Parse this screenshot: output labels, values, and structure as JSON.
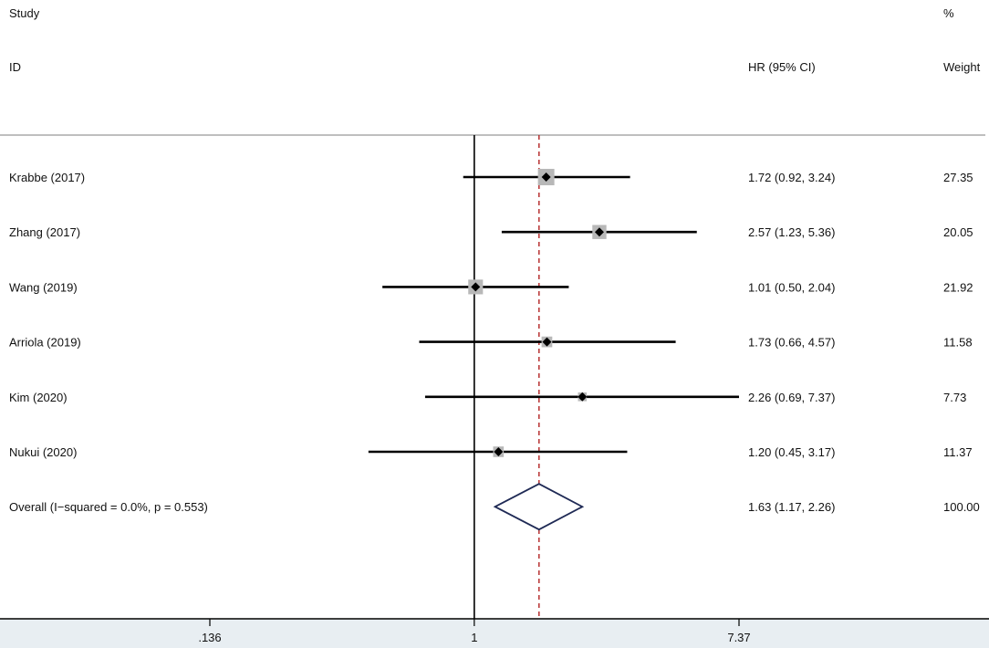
{
  "chart_data": {
    "type": "forest",
    "header": {
      "study_line1": "Study",
      "study_line2": "ID",
      "effect_label": "HR (95% CI)",
      "weight_line1": "%",
      "weight_line2": "Weight"
    },
    "x_scale": "log",
    "xlim": [
      0.136,
      7.37
    ],
    "x_ticks": [
      {
        "value": 0.136,
        "label": ".136"
      },
      {
        "value": 1,
        "label": "1"
      },
      {
        "value": 7.37,
        "label": "7.37"
      }
    ],
    "null_line": 1,
    "pooled_line": 1.63,
    "studies": [
      {
        "name": "Krabbe (2017)",
        "hr": 1.72,
        "lower": 0.92,
        "upper": 3.24,
        "ci_text": "1.72 (0.92, 3.24)",
        "weight": 27.35,
        "weight_text": "27.35"
      },
      {
        "name": "Zhang (2017)",
        "hr": 2.57,
        "lower": 1.23,
        "upper": 5.36,
        "ci_text": "2.57 (1.23, 5.36)",
        "weight": 20.05,
        "weight_text": "20.05"
      },
      {
        "name": "Wang (2019)",
        "hr": 1.01,
        "lower": 0.5,
        "upper": 2.04,
        "ci_text": "1.01 (0.50, 2.04)",
        "weight": 21.92,
        "weight_text": "21.92"
      },
      {
        "name": "Arriola (2019)",
        "hr": 1.73,
        "lower": 0.66,
        "upper": 4.57,
        "ci_text": "1.73 (0.66, 4.57)",
        "weight": 11.58,
        "weight_text": "11.58"
      },
      {
        "name": "Kim (2020)",
        "hr": 2.26,
        "lower": 0.69,
        "upper": 7.37,
        "ci_text": "2.26 (0.69, 7.37)",
        "weight": 7.73,
        "weight_text": "7.73"
      },
      {
        "name": "Nukui (2020)",
        "hr": 1.2,
        "lower": 0.45,
        "upper": 3.17,
        "ci_text": "1.20 (0.45, 3.17)",
        "weight": 11.37,
        "weight_text": "11.37"
      }
    ],
    "overall": {
      "name": "Overall  (I−squared = 0.0%, p = 0.553)",
      "hr": 1.63,
      "lower": 1.17,
      "upper": 2.26,
      "ci_text": "1.63 (1.17, 2.26)",
      "weight": 100.0,
      "weight_text": "100.00"
    },
    "colors": {
      "ci_line": "#000000",
      "weight_box": "#b8b8b8",
      "point": "#000000",
      "pooled_line": "#b22222",
      "diamond": "#1f2a55",
      "axis_band": "#e8eef2",
      "rule": "#999999"
    }
  }
}
